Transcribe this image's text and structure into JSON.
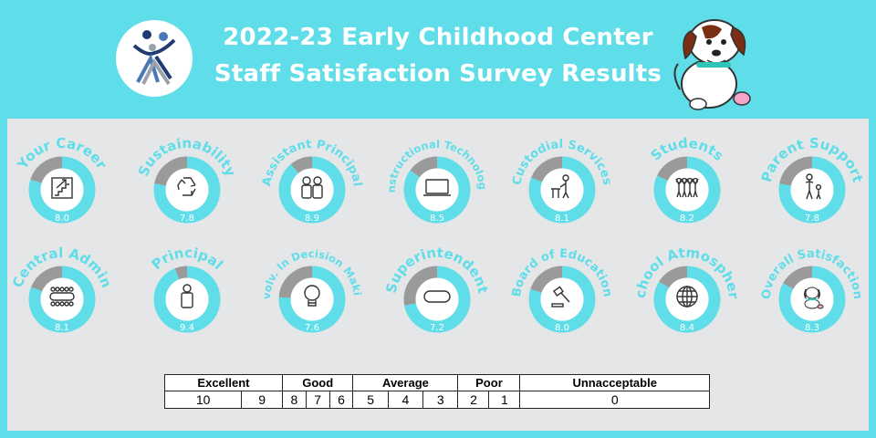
{
  "header": {
    "title_line1": "2022-23 Early Childhood Center",
    "title_line2": "Staff Satisfaction Survey Results"
  },
  "colors": {
    "background": "#5fdde9",
    "ring": "#5fdde9",
    "ring_remainder": "#9a9a9a",
    "panel": "#e4e6e8"
  },
  "chart_data": {
    "type": "pie",
    "max": 10,
    "categories": [
      "Your Career",
      "Sustainability",
      "Assistant Principal",
      "Instructional Technology",
      "Custodial Services",
      "Students",
      "Parent Support",
      "Central Admin",
      "Principal",
      "Involv. In Decision Making",
      "Superintendent",
      "Board of Education",
      "School Atmosphere",
      "Overall Satisfaction"
    ],
    "values": [
      8.0,
      7.8,
      8.9,
      8.5,
      8.1,
      8.2,
      7.8,
      8.1,
      9.4,
      7.6,
      7.2,
      8.0,
      8.4,
      8.3
    ],
    "value_labels": [
      "8.0",
      "7.8",
      "8.9",
      "8.5",
      "8.1",
      "8.2",
      "7.8",
      "8.1",
      "9.4",
      "7.6",
      "7.2",
      "8.0",
      "8.4",
      "8.3"
    ],
    "icons": [
      "stairs-icon",
      "recycle-icon",
      "people-icon",
      "laptop-icon",
      "custodian-icon",
      "students-icon",
      "parent-child-icon",
      "meeting-table-icon",
      "person-icon",
      "lightbulb-icon",
      "capsule-icon",
      "gavel-icon",
      "globe-icon",
      "dog-icon"
    ]
  },
  "scale": {
    "groups": [
      {
        "label": "Excellent",
        "span": 2
      },
      {
        "label": "Good",
        "span": 3
      },
      {
        "label": "Average",
        "span": 3
      },
      {
        "label": "Poor",
        "span": 2
      },
      {
        "label": "Unnacceptable",
        "span": 1
      }
    ],
    "values": [
      "10",
      "9",
      "8",
      "7",
      "6",
      "5",
      "4",
      "3",
      "2",
      "1",
      "0"
    ]
  }
}
